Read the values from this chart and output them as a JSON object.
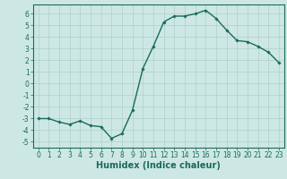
{
  "x": [
    0,
    1,
    2,
    3,
    4,
    5,
    6,
    7,
    8,
    9,
    10,
    11,
    12,
    13,
    14,
    15,
    16,
    17,
    18,
    19,
    20,
    21,
    22,
    23
  ],
  "y": [
    -3.0,
    -3.0,
    -3.3,
    -3.5,
    -3.2,
    -3.6,
    -3.7,
    -4.7,
    -4.3,
    -2.3,
    1.3,
    3.2,
    5.3,
    5.8,
    5.8,
    6.0,
    6.3,
    5.6,
    4.6,
    3.7,
    3.6,
    3.2,
    2.7,
    1.8
  ],
  "line_color": "#1a6b5a",
  "marker": "D",
  "marker_size": 1.8,
  "bg_color": "#cde8e4",
  "grid_color": "#b0cfc9",
  "xlabel": "Humidex (Indice chaleur)",
  "ylim": [
    -5.5,
    6.8
  ],
  "xlim": [
    -0.5,
    23.5
  ],
  "yticks": [
    -5,
    -4,
    -3,
    -2,
    -1,
    0,
    1,
    2,
    3,
    4,
    5,
    6
  ],
  "xticks": [
    0,
    1,
    2,
    3,
    4,
    5,
    6,
    7,
    8,
    9,
    10,
    11,
    12,
    13,
    14,
    15,
    16,
    17,
    18,
    19,
    20,
    21,
    22,
    23
  ],
  "tick_label_size": 5.5,
  "xlabel_fontsize": 7.0,
  "line_width": 1.0
}
